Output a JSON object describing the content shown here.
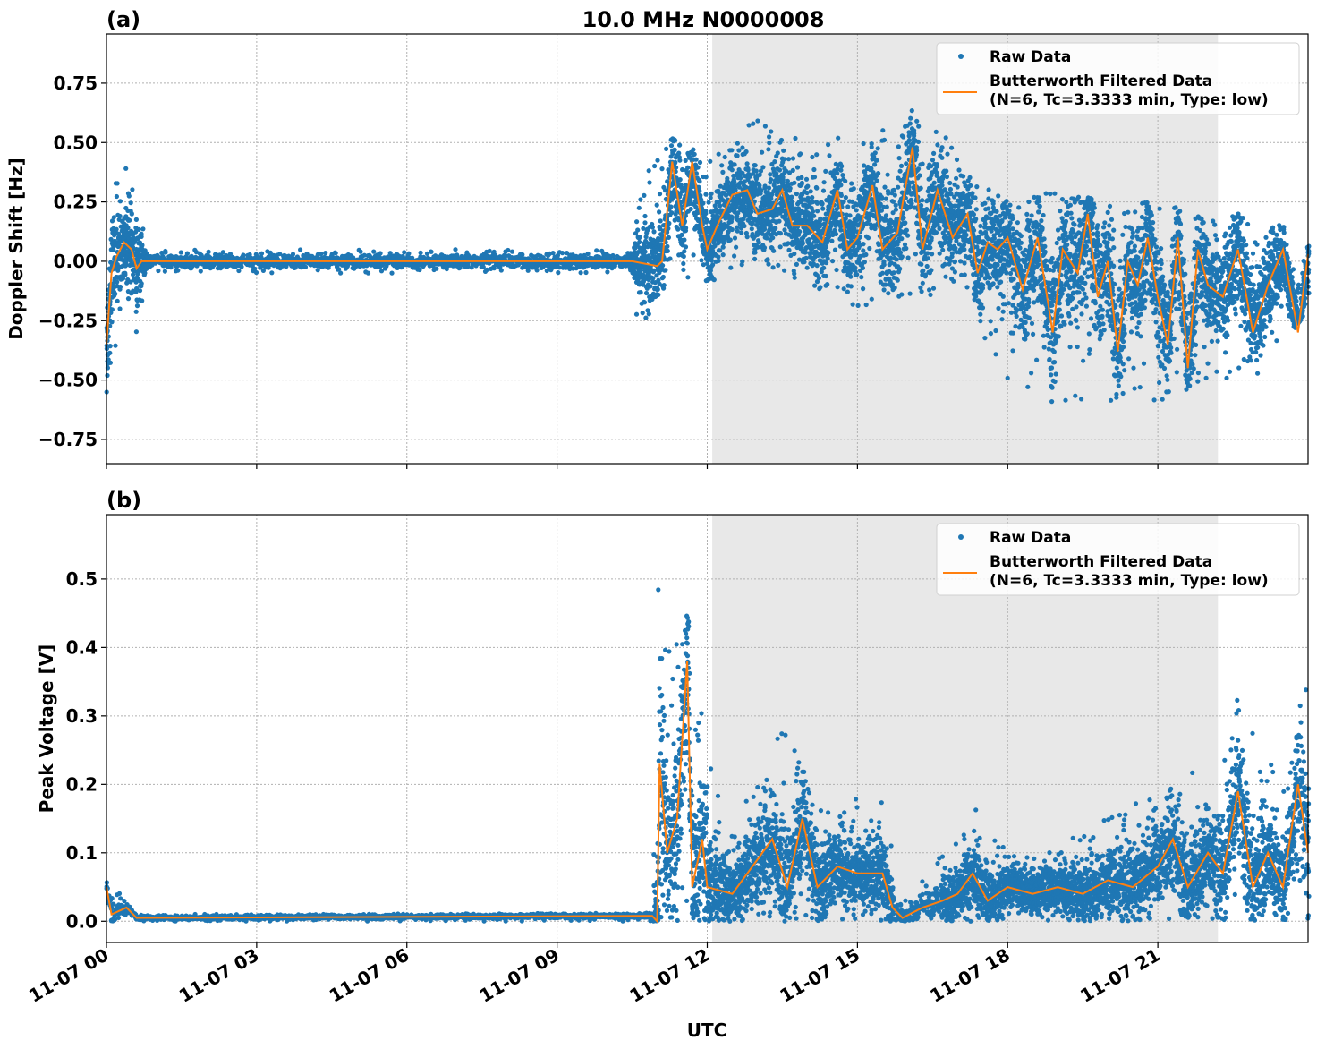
{
  "chart_data": [
    {
      "type": "scatter",
      "panel_label": "(a)",
      "title": "10.0 MHz N0000008",
      "xlabel": "",
      "ylabel": "Doppler Shift [Hz]",
      "x_unit": "hours since 11-07 00 UTC",
      "xlim": [
        0,
        24
      ],
      "ylim": [
        -0.852,
        0.957
      ],
      "yticks": [
        -0.75,
        -0.5,
        -0.25,
        0.0,
        0.25,
        0.5,
        0.75
      ],
      "ytick_labels": [
        "−0.75",
        "−0.50",
        "−0.25",
        "0.00",
        "0.25",
        "0.50",
        "0.75"
      ],
      "xticks": [
        0,
        3,
        6,
        9,
        12,
        15,
        18,
        21
      ],
      "xtick_labels": [
        "11-07 00",
        "11-07 03",
        "11-07 06",
        "11-07 09",
        "11-07 12",
        "11-07 15",
        "11-07 18",
        "11-07 21"
      ],
      "grid": true,
      "shaded_span": [
        12.1,
        22.2
      ],
      "legend": {
        "placement": "top-right",
        "entries": [
          "Raw Data",
          "Butterworth Filtered Data",
          "(N=6, Tc=3.3333 min, Type: low)"
        ]
      },
      "colors": {
        "raw": "#1f77b4",
        "filtered": "#ff7f0e",
        "shade": "#e8e8e8"
      },
      "series": [
        {
          "name": "Raw Data",
          "kind": "scatter-envelope",
          "points_hour_low_high": [
            [
              0,
              -0.6,
              0.3
            ],
            [
              0.3,
              -0.3,
              0.45
            ],
            [
              0.6,
              -0.3,
              0.3
            ],
            [
              0.8,
              -0.05,
              0.05
            ],
            [
              10.5,
              -0.05,
              0.05
            ],
            [
              10.6,
              -0.3,
              0.3
            ],
            [
              11.2,
              -0.1,
              0.55
            ],
            [
              12,
              -0.1,
              0.45
            ],
            [
              13,
              0,
              0.6
            ],
            [
              14,
              -0.1,
              0.55
            ],
            [
              15,
              -0.2,
              0.5
            ],
            [
              16,
              -0.15,
              0.65
            ],
            [
              17,
              -0.15,
              0.5
            ],
            [
              18,
              -0.55,
              0.25
            ],
            [
              19,
              -0.6,
              0.3
            ],
            [
              20,
              -0.6,
              0.25
            ],
            [
              21,
              -0.6,
              0.25
            ],
            [
              22,
              -0.5,
              0.2
            ],
            [
              23,
              -0.5,
              0.2
            ],
            [
              24,
              -0.2,
              0.1
            ]
          ]
        },
        {
          "name": "Butterworth Filtered Data",
          "kind": "line",
          "points": [
            [
              0,
              -0.35
            ],
            [
              0.1,
              -0.05
            ],
            [
              0.2,
              0.02
            ],
            [
              0.35,
              0.08
            ],
            [
              0.5,
              0.05
            ],
            [
              0.6,
              -0.03
            ],
            [
              0.7,
              0.0
            ],
            [
              1,
              0
            ],
            [
              10.5,
              0.0
            ],
            [
              11.0,
              -0.02
            ],
            [
              11.1,
              0.0
            ],
            [
              11.3,
              0.42
            ],
            [
              11.5,
              0.15
            ],
            [
              11.7,
              0.42
            ],
            [
              11.9,
              0.15
            ],
            [
              12.0,
              0.05
            ],
            [
              12.2,
              0.15
            ],
            [
              12.5,
              0.28
            ],
            [
              12.8,
              0.3
            ],
            [
              13.0,
              0.2
            ],
            [
              13.3,
              0.22
            ],
            [
              13.5,
              0.3
            ],
            [
              13.7,
              0.15
            ],
            [
              14.0,
              0.15
            ],
            [
              14.3,
              0.08
            ],
            [
              14.6,
              0.3
            ],
            [
              14.8,
              0.05
            ],
            [
              15.0,
              0.1
            ],
            [
              15.3,
              0.32
            ],
            [
              15.5,
              0.05
            ],
            [
              15.8,
              0.12
            ],
            [
              16.1,
              0.48
            ],
            [
              16.3,
              0.05
            ],
            [
              16.6,
              0.3
            ],
            [
              16.9,
              0.1
            ],
            [
              17.2,
              0.2
            ],
            [
              17.4,
              -0.05
            ],
            [
              17.6,
              0.08
            ],
            [
              17.8,
              0.05
            ],
            [
              18.0,
              0.1
            ],
            [
              18.3,
              -0.12
            ],
            [
              18.6,
              0.1
            ],
            [
              18.9,
              -0.3
            ],
            [
              19.1,
              0.05
            ],
            [
              19.4,
              -0.05
            ],
            [
              19.6,
              0.2
            ],
            [
              19.8,
              -0.15
            ],
            [
              20.0,
              0.0
            ],
            [
              20.2,
              -0.38
            ],
            [
              20.4,
              0.0
            ],
            [
              20.6,
              -0.1
            ],
            [
              20.8,
              0.1
            ],
            [
              21.0,
              -0.15
            ],
            [
              21.2,
              -0.35
            ],
            [
              21.4,
              0.1
            ],
            [
              21.6,
              -0.45
            ],
            [
              21.8,
              0.05
            ],
            [
              22.0,
              -0.1
            ],
            [
              22.3,
              -0.15
            ],
            [
              22.6,
              0.05
            ],
            [
              22.9,
              -0.3
            ],
            [
              23.2,
              -0.1
            ],
            [
              23.5,
              0.05
            ],
            [
              23.8,
              -0.3
            ],
            [
              24,
              0.03
            ]
          ]
        }
      ]
    },
    {
      "type": "scatter",
      "panel_label": "(b)",
      "xlabel": "UTC",
      "ylabel": "Peak Voltage [V]",
      "xlim": [
        0,
        24
      ],
      "ylim": [
        -0.031,
        0.594
      ],
      "yticks": [
        0.0,
        0.1,
        0.2,
        0.3,
        0.4,
        0.5
      ],
      "ytick_labels": [
        "0.0",
        "0.1",
        "0.2",
        "0.3",
        "0.4",
        "0.5"
      ],
      "xticks": [
        0,
        3,
        6,
        9,
        12,
        15,
        18,
        21
      ],
      "xtick_labels": [
        "11-07 00",
        "11-07 03",
        "11-07 06",
        "11-07 09",
        "11-07 12",
        "11-07 15",
        "11-07 18",
        "11-07 21"
      ],
      "grid": true,
      "shaded_span": [
        12.1,
        22.2
      ],
      "legend": {
        "placement": "top-right",
        "entries": [
          "Raw Data",
          "Butterworth Filtered Data",
          "(N=6, Tc=3.3333 min, Type: low)"
        ]
      },
      "colors": {
        "raw": "#1f77b4",
        "filtered": "#ff7f0e",
        "shade": "#e8e8e8"
      },
      "series": [
        {
          "name": "Raw Data",
          "kind": "scatter-envelope",
          "points_hour_low_high": [
            [
              0,
              0,
              0.09
            ],
            [
              0.3,
              0,
              0.04
            ],
            [
              0.6,
              0,
              0.01
            ],
            [
              10.9,
              0,
              0.012
            ],
            [
              11.0,
              0,
              0.55
            ],
            [
              11.3,
              0,
              0.4
            ],
            [
              11.6,
              0,
              0.45
            ],
            [
              12,
              0,
              0.3
            ],
            [
              12.5,
              0,
              0.15
            ],
            [
              13.5,
              0,
              0.28
            ],
            [
              14.5,
              0,
              0.18
            ],
            [
              15.5,
              0,
              0.2
            ],
            [
              15.8,
              0,
              0.05
            ],
            [
              16.5,
              0,
              0.08
            ],
            [
              17.3,
              0,
              0.18
            ],
            [
              18,
              0,
              0.1
            ],
            [
              19,
              0,
              0.12
            ],
            [
              20,
              0,
              0.15
            ],
            [
              21,
              0,
              0.2
            ],
            [
              21.5,
              0,
              0.25
            ],
            [
              22,
              0,
              0.2
            ],
            [
              22.6,
              0,
              0.34
            ],
            [
              23.5,
              0,
              0.2
            ],
            [
              24,
              0,
              0.38
            ]
          ]
        },
        {
          "name": "Butterworth Filtered Data",
          "kind": "line",
          "points": [
            [
              0,
              0.05
            ],
            [
              0.1,
              0.01
            ],
            [
              0.4,
              0.02
            ],
            [
              0.6,
              0.005
            ],
            [
              10.9,
              0.008
            ],
            [
              11.0,
              0.0
            ],
            [
              11.05,
              0.23
            ],
            [
              11.2,
              0.1
            ],
            [
              11.4,
              0.15
            ],
            [
              11.6,
              0.38
            ],
            [
              11.7,
              0.05
            ],
            [
              11.9,
              0.12
            ],
            [
              12,
              0.05
            ],
            [
              12.5,
              0.04
            ],
            [
              13,
              0.09
            ],
            [
              13.3,
              0.12
            ],
            [
              13.6,
              0.05
            ],
            [
              13.9,
              0.15
            ],
            [
              14.2,
              0.05
            ],
            [
              14.6,
              0.08
            ],
            [
              15,
              0.07
            ],
            [
              15.5,
              0.07
            ],
            [
              15.7,
              0.02
            ],
            [
              15.9,
              0.005
            ],
            [
              16.3,
              0.02
            ],
            [
              16.7,
              0.03
            ],
            [
              17,
              0.04
            ],
            [
              17.3,
              0.07
            ],
            [
              17.6,
              0.03
            ],
            [
              18,
              0.05
            ],
            [
              18.5,
              0.04
            ],
            [
              19,
              0.05
            ],
            [
              19.5,
              0.04
            ],
            [
              20,
              0.06
            ],
            [
              20.5,
              0.05
            ],
            [
              21,
              0.08
            ],
            [
              21.3,
              0.12
            ],
            [
              21.6,
              0.05
            ],
            [
              22,
              0.1
            ],
            [
              22.3,
              0.07
            ],
            [
              22.6,
              0.19
            ],
            [
              22.9,
              0.05
            ],
            [
              23.2,
              0.1
            ],
            [
              23.5,
              0.05
            ],
            [
              23.8,
              0.2
            ],
            [
              24,
              0.1
            ]
          ]
        }
      ]
    }
  ]
}
